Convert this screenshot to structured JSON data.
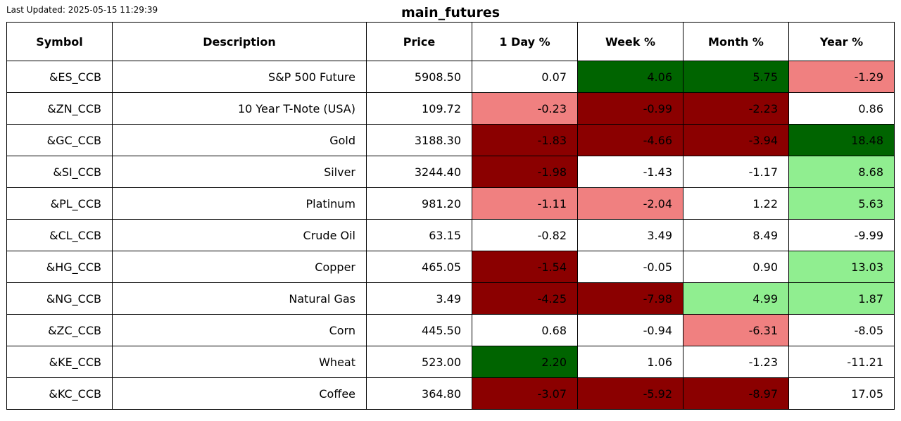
{
  "last_updated": "Last Updated: 2025-05-15 11:29:39",
  "title": "main_futures",
  "colors": {
    "dark_green": "#006400",
    "light_green": "#90EE90",
    "dark_red": "#8B0000",
    "light_red": "#F08080",
    "neutral": "#FFFFFF"
  },
  "chart_data": {
    "type": "table",
    "title": "main_futures",
    "columns": [
      "Symbol",
      "Description",
      "Price",
      "1 Day %",
      "Week %",
      "Month %",
      "Year %"
    ],
    "rows": [
      {
        "symbol": "&ES_CCB",
        "description": "S&P 500 Future",
        "price": "5908.50",
        "day": "0.07",
        "week": "4.06",
        "month": "5.75",
        "year": "-1.29",
        "colors": [
          "neutral",
          "dark_green",
          "dark_green",
          "light_red"
        ]
      },
      {
        "symbol": "&ZN_CCB",
        "description": "10 Year T-Note (USA)",
        "price": "109.72",
        "day": "-0.23",
        "week": "-0.99",
        "month": "-2.23",
        "year": "0.86",
        "colors": [
          "light_red",
          "dark_red",
          "dark_red",
          "neutral"
        ]
      },
      {
        "symbol": "&GC_CCB",
        "description": "Gold",
        "price": "3188.30",
        "day": "-1.83",
        "week": "-4.66",
        "month": "-3.94",
        "year": "18.48",
        "colors": [
          "dark_red",
          "dark_red",
          "dark_red",
          "dark_green"
        ]
      },
      {
        "symbol": "&SI_CCB",
        "description": "Silver",
        "price": "3244.40",
        "day": "-1.98",
        "week": "-1.43",
        "month": "-1.17",
        "year": "8.68",
        "colors": [
          "dark_red",
          "neutral",
          "neutral",
          "light_green"
        ]
      },
      {
        "symbol": "&PL_CCB",
        "description": "Platinum",
        "price": "981.20",
        "day": "-1.11",
        "week": "-2.04",
        "month": "1.22",
        "year": "5.63",
        "colors": [
          "light_red",
          "light_red",
          "neutral",
          "light_green"
        ]
      },
      {
        "symbol": "&CL_CCB",
        "description": "Crude Oil",
        "price": "63.15",
        "day": "-0.82",
        "week": "3.49",
        "month": "8.49",
        "year": "-9.99",
        "colors": [
          "neutral",
          "neutral",
          "neutral",
          "neutral"
        ]
      },
      {
        "symbol": "&HG_CCB",
        "description": "Copper",
        "price": "465.05",
        "day": "-1.54",
        "week": "-0.05",
        "month": "0.90",
        "year": "13.03",
        "colors": [
          "dark_red",
          "neutral",
          "neutral",
          "light_green"
        ]
      },
      {
        "symbol": "&NG_CCB",
        "description": "Natural Gas",
        "price": "3.49",
        "day": "-4.25",
        "week": "-7.98",
        "month": "4.99",
        "year": "1.87",
        "colors": [
          "dark_red",
          "dark_red",
          "light_green",
          "light_green"
        ]
      },
      {
        "symbol": "&ZC_CCB",
        "description": "Corn",
        "price": "445.50",
        "day": "0.68",
        "week": "-0.94",
        "month": "-6.31",
        "year": "-8.05",
        "colors": [
          "neutral",
          "neutral",
          "light_red",
          "neutral"
        ]
      },
      {
        "symbol": "&KE_CCB",
        "description": "Wheat",
        "price": "523.00",
        "day": "2.20",
        "week": "1.06",
        "month": "-1.23",
        "year": "-11.21",
        "colors": [
          "dark_green",
          "neutral",
          "neutral",
          "neutral"
        ]
      },
      {
        "symbol": "&KC_CCB",
        "description": "Coffee",
        "price": "364.80",
        "day": "-3.07",
        "week": "-5.92",
        "month": "-8.97",
        "year": "17.05",
        "colors": [
          "dark_red",
          "dark_red",
          "dark_red",
          "neutral"
        ]
      }
    ]
  }
}
